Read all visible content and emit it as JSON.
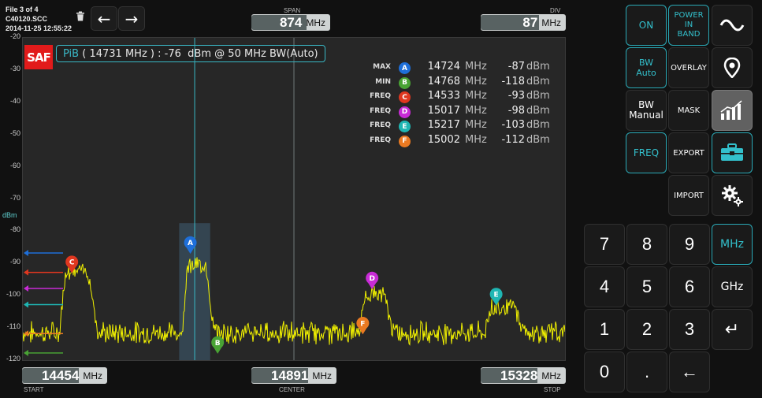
{
  "file_info": {
    "line1": "File 3 of 4",
    "line2": "C40120.SCC",
    "line3": "2014-11-25 12:55:22"
  },
  "toolbar": {
    "delete_icon": "trash-icon",
    "back": "←",
    "forward": "→"
  },
  "span": {
    "title": "SPAN",
    "value": "874",
    "unit": "MHz"
  },
  "div": {
    "title": "DIV",
    "value": "87",
    "unit": "MHz"
  },
  "y_axis": {
    "unit": "dBm",
    "ticks": [
      "-20",
      "-30",
      "-40",
      "-50",
      "-60",
      "-70",
      "-80",
      "-90",
      "-100",
      "-110",
      "-120"
    ]
  },
  "logo_text": "SAF",
  "pib": {
    "prefix": "PiB",
    "open": "(",
    "freq": "14731",
    "freq_unit": "MHz",
    "close": ")",
    "sep": ":",
    "level": "-76",
    "level_unit": "dBm",
    "at": "@",
    "bw": "50",
    "bw_unit": "MHz",
    "bw_suffix": "BW(Auto)"
  },
  "markers": [
    {
      "type": "MAX",
      "label": "A",
      "freq": "14724",
      "freq_unit": "MHz",
      "amp": "-87",
      "amp_unit": "dBm",
      "color": "#1e6fd9"
    },
    {
      "type": "MIN",
      "label": "B",
      "freq": "14768",
      "freq_unit": "MHz",
      "amp": "-118",
      "amp_unit": "dBm",
      "color": "#49a334"
    },
    {
      "type": "FREQ",
      "label": "C",
      "freq": "14533",
      "freq_unit": "MHz",
      "amp": "-93",
      "amp_unit": "dBm",
      "color": "#e0371f"
    },
    {
      "type": "FREQ",
      "label": "D",
      "freq": "15017",
      "freq_unit": "MHz",
      "amp": "-98",
      "amp_unit": "dBm",
      "color": "#c82bd6"
    },
    {
      "type": "FREQ",
      "label": "E",
      "freq": "15217",
      "freq_unit": "MHz",
      "amp": "-103",
      "amp_unit": "dBm",
      "color": "#1fb6b3"
    },
    {
      "type": "FREQ",
      "label": "F",
      "freq": "15002",
      "freq_unit": "MHz",
      "amp": "-112",
      "amp_unit": "dBm",
      "color": "#ea7a22"
    }
  ],
  "start": {
    "value": "14454",
    "unit": "MHz",
    "title": "START"
  },
  "center": {
    "value": "14891",
    "unit": "MHz",
    "title": "CENTER"
  },
  "stop": {
    "value": "15328",
    "unit": "MHz",
    "title": "STOP"
  },
  "right_panel": {
    "on": "ON",
    "power_in_band": [
      "POWER",
      "IN",
      "BAND"
    ],
    "bw_auto": [
      "BW",
      "Auto"
    ],
    "overlay": "OVERLAY",
    "bw_manual": [
      "BW",
      "Manual"
    ],
    "mask": "MASK",
    "freq": "FREQ",
    "export": "EXPORT",
    "import": "IMPORT",
    "icons": [
      "waveform-icon",
      "location-pin-icon",
      "spectrum-analyzer-icon",
      "toolbox-icon",
      "settings-gears-icon"
    ]
  },
  "keypad": {
    "keys": [
      "7",
      "8",
      "9",
      "4",
      "5",
      "6",
      "1",
      "2",
      "3",
      "0",
      "."
    ],
    "mhz": "MHz",
    "ghz": "GHz",
    "enter": "↵",
    "backspace": "←"
  },
  "colors": {
    "accent": "#2aa9b6",
    "trace": "#f2f200",
    "background": "#272727"
  }
}
